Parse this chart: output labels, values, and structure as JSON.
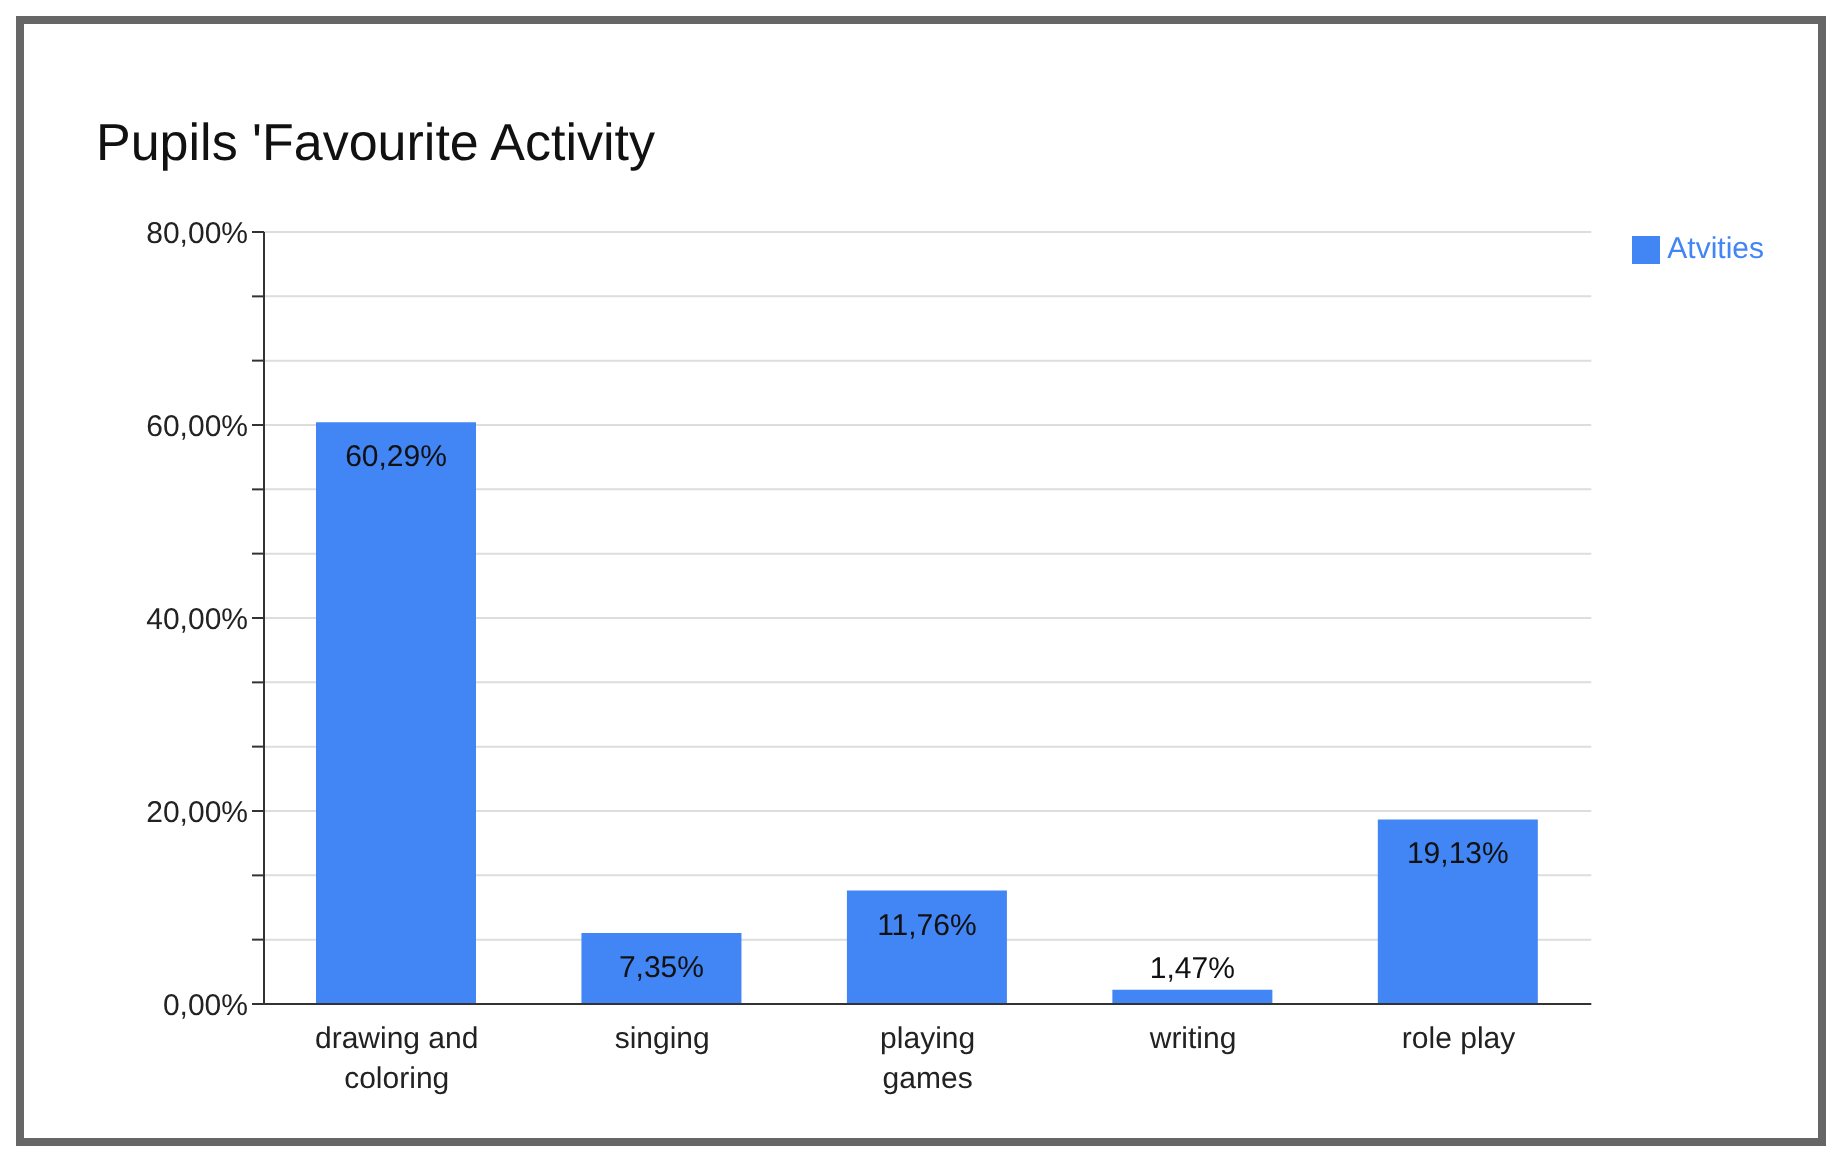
{
  "chart_data": {
    "type": "bar",
    "title": "Pupils 'Favourite Activity",
    "categories": [
      "drawing and coloring",
      "singing",
      "playing games",
      "writing",
      "role play"
    ],
    "series": [
      {
        "name": "Atvities",
        "color": "#4285f4",
        "values": [
          60.29,
          7.35,
          11.76,
          1.47,
          19.13
        ],
        "value_labels": [
          "60,29%",
          "7,35%",
          "11,76%",
          "1,47%",
          "19,13%"
        ]
      }
    ],
    "ylim": [
      0,
      80
    ],
    "yticks": [
      {
        "value": 0,
        "label": "0,00%"
      },
      {
        "value": 6.67,
        "label": null
      },
      {
        "value": 13.33,
        "label": null
      },
      {
        "value": 20,
        "label": "20,00%"
      },
      {
        "value": 26.67,
        "label": null
      },
      {
        "value": 33.33,
        "label": null
      },
      {
        "value": 40,
        "label": "40,00%"
      },
      {
        "value": 46.67,
        "label": null
      },
      {
        "value": 53.33,
        "label": null
      },
      {
        "value": 60,
        "label": "60,00%"
      },
      {
        "value": 66.67,
        "label": null
      },
      {
        "value": 73.33,
        "label": null
      },
      {
        "value": 80,
        "label": "80,00%"
      }
    ],
    "grid": "y",
    "legend": "top right"
  }
}
